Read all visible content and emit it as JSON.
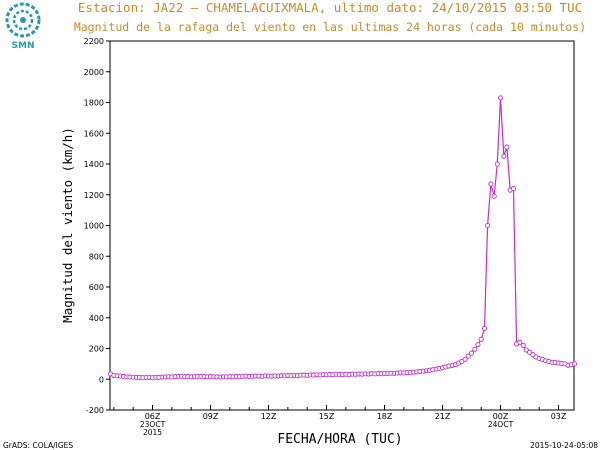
{
  "header": {
    "title": "Estacion: JA22 – CHAMELACUIXMALA, ultimo dato: 24/10/2015 03:50 TUC",
    "subtitle": "Magnitud de la rafaga del viento en las ultimas 24 horas (cada 10 minutos)",
    "logo_text": "SMN"
  },
  "footer": {
    "left": "GrADS: COLA/IGES",
    "right": "2015-10-24-05:08"
  },
  "chart_data": {
    "type": "line",
    "title": "Magnitud de la rafaga del viento en las ultimas 24 horas (cada 10 minutos)",
    "xlabel": "FECHA/HORA (TUC)",
    "ylabel": "Magnitud del viento (km/h)",
    "ylim": [
      -200,
      2200
    ],
    "yticks": [
      -200,
      0,
      200,
      400,
      600,
      800,
      1000,
      1200,
      1400,
      1600,
      1800,
      2000,
      2200
    ],
    "x_range_hours_utc": [
      3.8,
      27.8
    ],
    "xticks": [
      {
        "x": 6,
        "label": "06Z",
        "sub1": "23OCT",
        "sub2": "2015"
      },
      {
        "x": 9,
        "label": "09Z"
      },
      {
        "x": 12,
        "label": "12Z"
      },
      {
        "x": 15,
        "label": "15Z"
      },
      {
        "x": 18,
        "label": "18Z"
      },
      {
        "x": 21,
        "label": "21Z"
      },
      {
        "x": 24,
        "label": "00Z",
        "sub1": "24OCT"
      },
      {
        "x": 27,
        "label": "03Z"
      }
    ],
    "grid": false,
    "series": [
      {
        "color": "#bb33cc",
        "points": [
          [
            3.83,
            35
          ],
          [
            4.0,
            25
          ],
          [
            4.17,
            22
          ],
          [
            4.33,
            20
          ],
          [
            4.5,
            18
          ],
          [
            4.67,
            15
          ],
          [
            4.83,
            14
          ],
          [
            5.0,
            13
          ],
          [
            5.17,
            12
          ],
          [
            5.33,
            12
          ],
          [
            5.5,
            10
          ],
          [
            5.67,
            11
          ],
          [
            5.83,
            12
          ],
          [
            6.0,
            10
          ],
          [
            6.17,
            13
          ],
          [
            6.33,
            12
          ],
          [
            6.5,
            14
          ],
          [
            6.67,
            15
          ],
          [
            6.83,
            16
          ],
          [
            7.0,
            15
          ],
          [
            7.17,
            17
          ],
          [
            7.33,
            18
          ],
          [
            7.5,
            19
          ],
          [
            7.67,
            17
          ],
          [
            7.83,
            18
          ],
          [
            8.0,
            16
          ],
          [
            8.17,
            17
          ],
          [
            8.33,
            19
          ],
          [
            8.5,
            18
          ],
          [
            8.67,
            17
          ],
          [
            8.83,
            16
          ],
          [
            9.0,
            18
          ],
          [
            9.17,
            16
          ],
          [
            9.33,
            15
          ],
          [
            9.5,
            14
          ],
          [
            9.67,
            16
          ],
          [
            9.83,
            15
          ],
          [
            10.0,
            17
          ],
          [
            10.17,
            16
          ],
          [
            10.33,
            18
          ],
          [
            10.5,
            17
          ],
          [
            10.67,
            19
          ],
          [
            10.83,
            20
          ],
          [
            11.0,
            18
          ],
          [
            11.17,
            19
          ],
          [
            11.33,
            21
          ],
          [
            11.5,
            20
          ],
          [
            11.67,
            19
          ],
          [
            11.83,
            22
          ],
          [
            12.0,
            21
          ],
          [
            12.17,
            20
          ],
          [
            12.33,
            22
          ],
          [
            12.5,
            21
          ],
          [
            12.67,
            23
          ],
          [
            12.83,
            22
          ],
          [
            13.0,
            24
          ],
          [
            13.17,
            23
          ],
          [
            13.33,
            25
          ],
          [
            13.5,
            24
          ],
          [
            13.67,
            26
          ],
          [
            13.83,
            27
          ],
          [
            14.0,
            25
          ],
          [
            14.17,
            28
          ],
          [
            14.33,
            27
          ],
          [
            14.5,
            29
          ],
          [
            14.67,
            28
          ],
          [
            14.83,
            30
          ],
          [
            15.0,
            29
          ],
          [
            15.17,
            31
          ],
          [
            15.33,
            30
          ],
          [
            15.5,
            32
          ],
          [
            15.67,
            31
          ],
          [
            15.83,
            30
          ],
          [
            16.0,
            32
          ],
          [
            16.17,
            31
          ],
          [
            16.33,
            33
          ],
          [
            16.5,
            32
          ],
          [
            16.67,
            34
          ],
          [
            16.83,
            33
          ],
          [
            17.0,
            35
          ],
          [
            17.17,
            34
          ],
          [
            17.33,
            36
          ],
          [
            17.5,
            35
          ],
          [
            17.67,
            37
          ],
          [
            17.83,
            36
          ],
          [
            18.0,
            38
          ],
          [
            18.17,
            37
          ],
          [
            18.33,
            39
          ],
          [
            18.5,
            38
          ],
          [
            18.67,
            40
          ],
          [
            18.83,
            42
          ],
          [
            19.0,
            41
          ],
          [
            19.17,
            43
          ],
          [
            19.33,
            44
          ],
          [
            19.5,
            46
          ],
          [
            19.67,
            48
          ],
          [
            19.83,
            50
          ],
          [
            20.0,
            52
          ],
          [
            20.17,
            55
          ],
          [
            20.33,
            58
          ],
          [
            20.5,
            62
          ],
          [
            20.67,
            66
          ],
          [
            20.83,
            70
          ],
          [
            21.0,
            75
          ],
          [
            21.17,
            80
          ],
          [
            21.33,
            86
          ],
          [
            21.5,
            90
          ],
          [
            21.67,
            95
          ],
          [
            21.83,
            105
          ],
          [
            22.0,
            115
          ],
          [
            22.17,
            130
          ],
          [
            22.33,
            150
          ],
          [
            22.5,
            170
          ],
          [
            22.67,
            195
          ],
          [
            22.83,
            225
          ],
          [
            23.0,
            260
          ],
          [
            23.17,
            330
          ],
          [
            23.33,
            1000
          ],
          [
            23.5,
            1270
          ],
          [
            23.67,
            1190
          ],
          [
            23.83,
            1400
          ],
          [
            24.0,
            1830
          ],
          [
            24.17,
            1450
          ],
          [
            24.33,
            1510
          ],
          [
            24.5,
            1230
          ],
          [
            24.67,
            1240
          ],
          [
            24.83,
            230
          ],
          [
            25.0,
            240
          ],
          [
            25.17,
            220
          ],
          [
            25.33,
            190
          ],
          [
            25.5,
            175
          ],
          [
            25.67,
            160
          ],
          [
            25.83,
            145
          ],
          [
            26.0,
            135
          ],
          [
            26.17,
            128
          ],
          [
            26.33,
            120
          ],
          [
            26.5,
            115
          ],
          [
            26.67,
            110
          ],
          [
            26.83,
            108
          ],
          [
            27.0,
            105
          ],
          [
            27.17,
            102
          ],
          [
            27.33,
            100
          ],
          [
            27.5,
            90
          ],
          [
            27.67,
            95
          ],
          [
            27.83,
            100
          ]
        ]
      }
    ]
  }
}
